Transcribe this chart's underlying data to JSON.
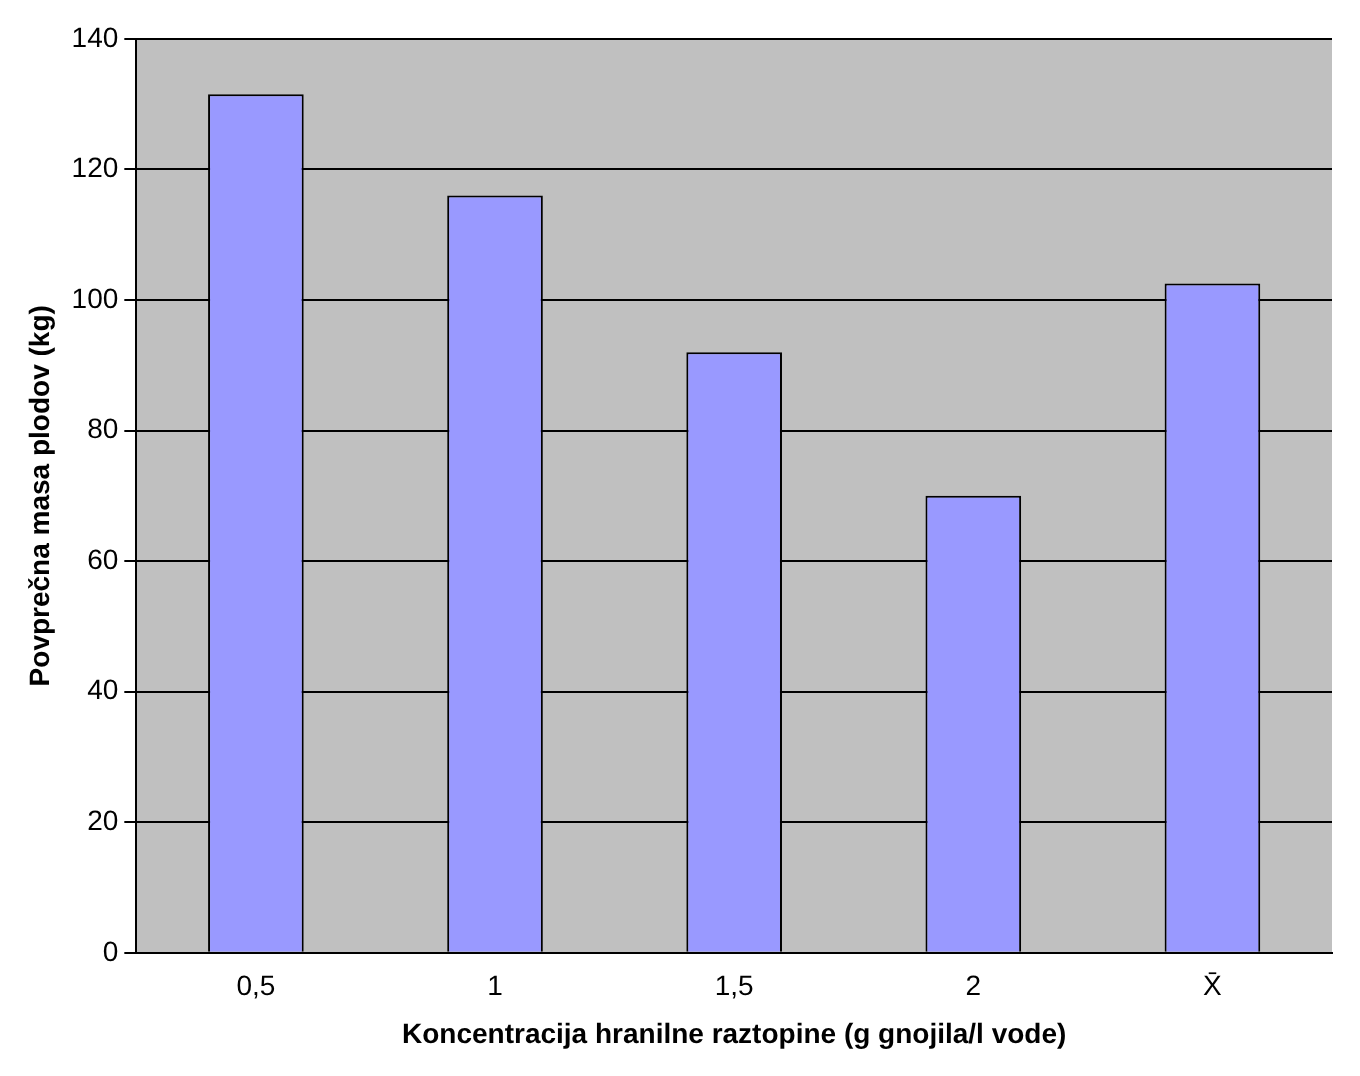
{
  "chart_data": {
    "type": "bar",
    "xlabel": "Koncentracija hranilne raztopine (g gnojila/l vode)",
    "ylabel": "Povprečna masa plodov (kg)",
    "categories": [
      "0,5",
      "1",
      "1,5",
      "2",
      "X̄"
    ],
    "values": [
      131.5,
      116,
      92,
      70,
      102.5
    ],
    "color": "#9999ff",
    "ylim": [
      0,
      140
    ],
    "yticks": [
      0,
      20,
      40,
      60,
      80,
      100,
      120,
      140
    ],
    "grid": "y"
  }
}
